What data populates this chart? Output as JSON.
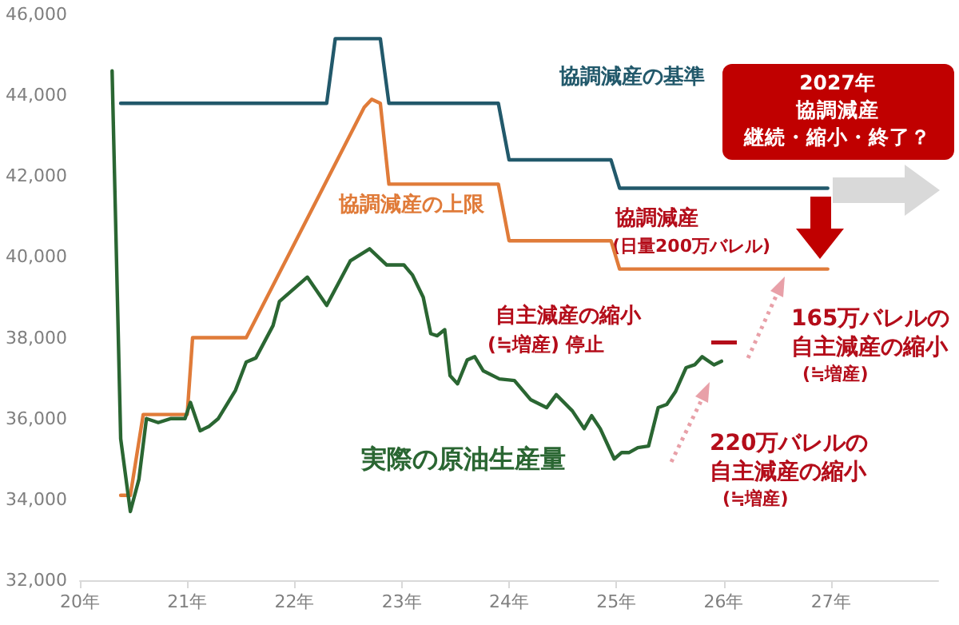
{
  "chart_data": {
    "type": "line",
    "series": [
      {
        "name": "協調減産の基準",
        "color": "#22596b",
        "x": [
          20.38,
          22.3,
          22.38,
          22.8,
          22.88,
          23.9,
          24.0,
          24.95,
          25.03,
          26.97
        ],
        "values": [
          43800,
          43800,
          45400,
          45400,
          43800,
          43800,
          42400,
          42400,
          41700,
          41700
        ]
      },
      {
        "name": "協調減産の上限",
        "color": "#e07b39",
        "x": [
          20.38,
          20.47,
          20.59,
          21.0,
          21.05,
          21.55,
          22.65,
          22.72,
          22.8,
          22.88,
          23.9,
          24.0,
          24.95,
          25.03,
          26.97
        ],
        "values": [
          34100,
          34100,
          36100,
          36100,
          38000,
          38000,
          43700,
          43900,
          43800,
          41800,
          41800,
          40400,
          40400,
          39700,
          39700
        ]
      },
      {
        "name": "実際の原油生産量",
        "color": "#2a6632",
        "x": [
          20.3,
          20.38,
          20.47,
          20.55,
          20.62,
          20.73,
          20.85,
          20.98,
          21.03,
          21.12,
          21.2,
          21.29,
          21.45,
          21.55,
          21.64,
          21.8,
          21.86,
          22.12,
          22.3,
          22.52,
          22.7,
          22.86,
          23.02,
          23.1,
          23.2,
          23.27,
          23.33,
          23.4,
          23.45,
          23.52,
          23.61,
          23.68,
          23.76,
          23.91,
          24.05,
          24.2,
          24.35,
          24.44,
          24.59,
          24.7,
          24.77,
          24.85,
          24.98,
          25.05,
          25.12,
          25.2,
          25.3,
          25.39,
          25.47,
          25.55,
          25.65,
          25.73,
          25.8,
          25.91,
          25.98
        ],
        "values": [
          44600,
          35500,
          33700,
          34500,
          36000,
          35900,
          36000,
          36000,
          36400,
          35700,
          35800,
          36000,
          36700,
          37400,
          37500,
          38300,
          38900,
          39500,
          38800,
          39900,
          40200,
          39800,
          39800,
          39550,
          39000,
          38100,
          38050,
          38200,
          37060,
          36860,
          37450,
          37530,
          37180,
          36980,
          36940,
          36470,
          36270,
          36590,
          36190,
          35750,
          36070,
          35750,
          35000,
          35160,
          35160,
          35280,
          35320,
          36270,
          36350,
          36660,
          37260,
          37330,
          37530,
          37330,
          37420
        ]
      }
    ],
    "xlim": [
      20,
      28
    ],
    "xticks": [
      {
        "value": 20,
        "label": "20年"
      },
      {
        "value": 21,
        "label": "21年"
      },
      {
        "value": 22,
        "label": "22年"
      },
      {
        "value": 23,
        "label": "23年"
      },
      {
        "value": 24,
        "label": "24年"
      },
      {
        "value": 25,
        "label": "25年"
      },
      {
        "value": 26,
        "label": "26年"
      },
      {
        "value": 27,
        "label": "27年"
      }
    ],
    "ylim": [
      32000,
      46000
    ],
    "yticks": [
      {
        "value": 32000,
        "label": "32,000"
      },
      {
        "value": 34000,
        "label": "34,000"
      },
      {
        "value": 36000,
        "label": "36,000"
      },
      {
        "value": 38000,
        "label": "38,000"
      },
      {
        "value": 40000,
        "label": "40,000"
      },
      {
        "value": 42000,
        "label": "42,000"
      },
      {
        "value": 44000,
        "label": "44,000"
      },
      {
        "value": 46000,
        "label": "46,000"
      }
    ],
    "grid": false,
    "legend": false,
    "marker": "none",
    "line_style": "solid",
    "annotations": [
      "協調減産",
      "(日量200万バレル)",
      "自主減産の縮小",
      "(≒増産) 停止",
      "165万バレルの",
      "自主減産の縮小",
      "(≒増産)",
      "220万バレルの",
      "自主減産の縮小",
      "(≒増産)",
      "2027年",
      "協調減産",
      "継続・縮小・終了？"
    ]
  }
}
